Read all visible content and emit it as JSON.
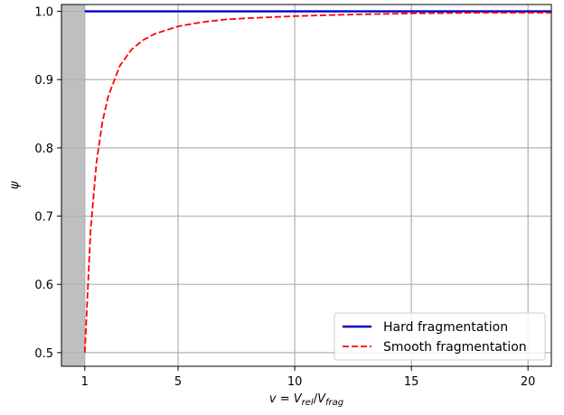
{
  "chart_data": {
    "type": "line",
    "xlabel": {
      "v": "v",
      "eq": " = ",
      "V": "V",
      "sub1": "rel",
      "slash": "/",
      "V2": "V",
      "sub2": "frag"
    },
    "ylabel": "ψ",
    "xlim": [
      0.0,
      21.0
    ],
    "ylim": [
      0.48,
      1.01
    ],
    "xticks": [
      1,
      5,
      10,
      15,
      20
    ],
    "yticks": [
      0.5,
      0.6,
      0.7,
      0.8,
      0.9,
      1.0
    ],
    "xtick_labels": [
      "1",
      "5",
      "10",
      "15",
      "20"
    ],
    "ytick_labels": [
      "0.5",
      "0.6",
      "0.7",
      "0.8",
      "0.9",
      "1.0"
    ],
    "grid": true,
    "shaded_region": {
      "x": [
        0.0,
        1.0
      ],
      "color": "#bfbfbf"
    },
    "legend_position": "lower-right",
    "series": [
      {
        "name": "Hard fragmentation",
        "color": "#0000cc",
        "style": "solid",
        "x": [
          1,
          21
        ],
        "y": [
          1.0,
          1.0
        ]
      },
      {
        "name": "Smooth fragmentation",
        "color": "#ff0000",
        "style": "dashed",
        "x": [
          1.0,
          1.25,
          1.5,
          1.75,
          2.0,
          2.5,
          3.0,
          3.5,
          4.0,
          5.0,
          6.0,
          7.0,
          8.0,
          10.0,
          12.0,
          15.0,
          18.0,
          21.0
        ],
        "y": [
          0.5,
          0.68,
          0.778,
          0.837,
          0.875,
          0.92,
          0.944,
          0.958,
          0.967,
          0.978,
          0.984,
          0.988,
          0.99,
          0.993,
          0.995,
          0.997,
          0.998,
          0.998
        ]
      }
    ]
  }
}
